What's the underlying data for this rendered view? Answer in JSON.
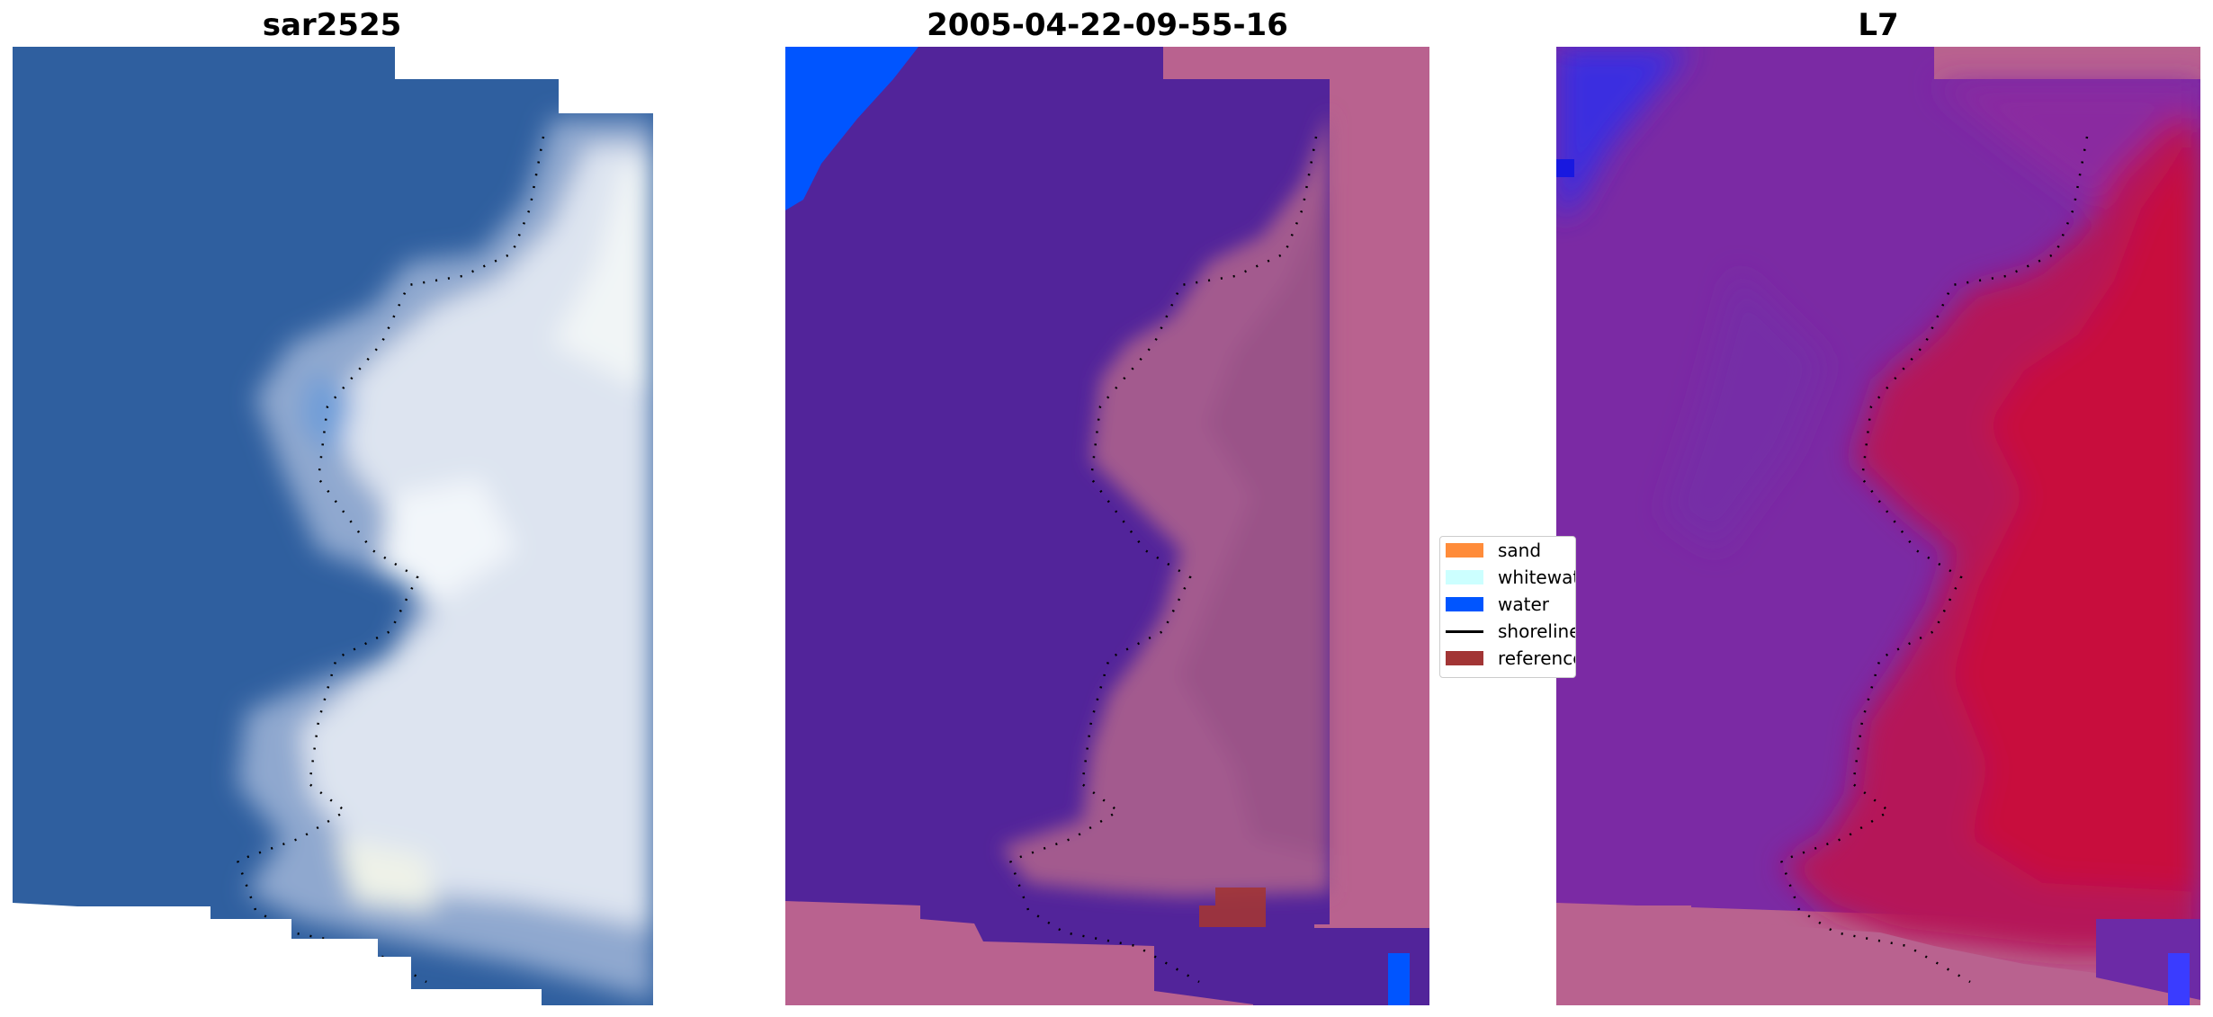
{
  "panels": [
    {
      "title": "sar2525",
      "image": "rgb-satellite-image"
    },
    {
      "title": "2005-04-22-09-55-16",
      "image": "classified-image"
    },
    {
      "title": "L7",
      "image": "mndwi-image"
    }
  ],
  "legend": {
    "items": [
      {
        "label": "sand",
        "color": "#ff8c3a",
        "kind": "patch"
      },
      {
        "label": "whitewater",
        "color": "#ccffff",
        "kind": "patch"
      },
      {
        "label": "water",
        "color": "#0055ff",
        "kind": "patch"
      },
      {
        "label": "shoreline",
        "color": "#000000",
        "kind": "line"
      },
      {
        "label": "reference",
        "color": "#a23535",
        "kind": "patch"
      }
    ]
  },
  "colors": {
    "sea_rgb": "#2f5f9f",
    "foam": "#e6ebf3",
    "class_water": "#52249a",
    "nodata": "#b9628f",
    "land_class": "#a35a8e",
    "mndwi_water": "#7b2aa4",
    "mndwi_land": "#cc1040",
    "blue_corner": "#0055ff",
    "reference": "#a23535"
  }
}
